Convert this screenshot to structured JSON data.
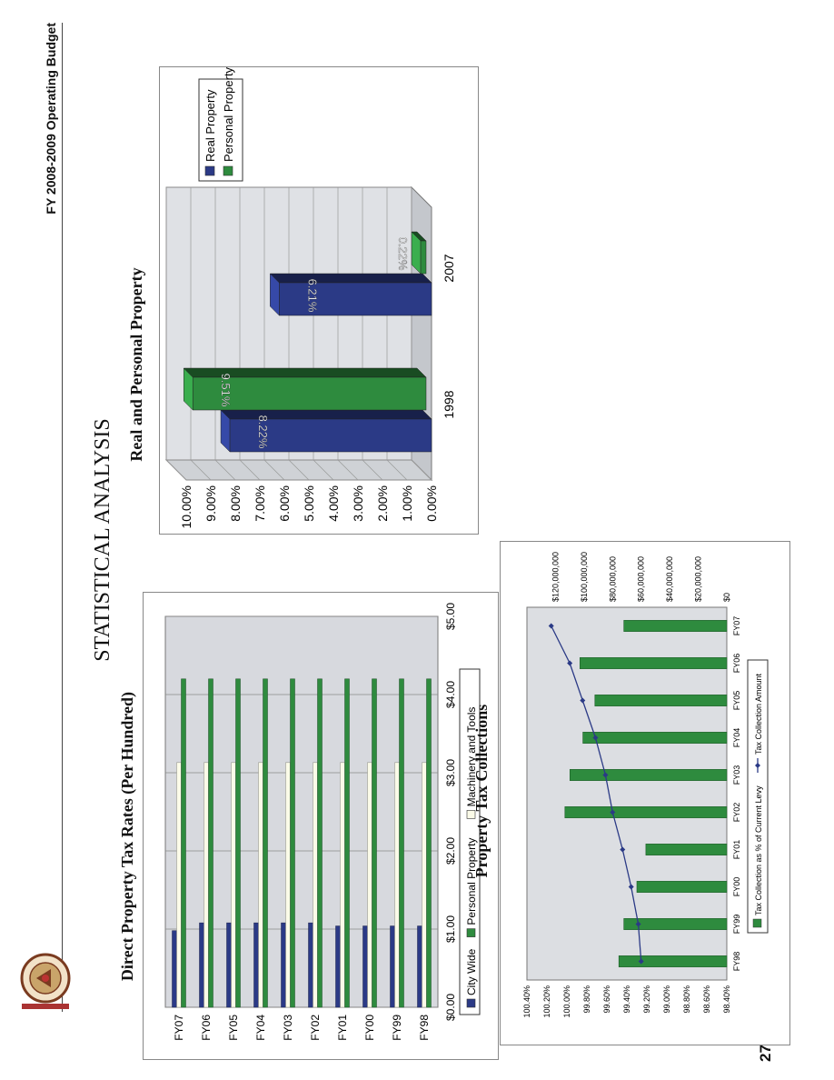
{
  "header": {
    "title": "FY 2008-2009 Operating Budget"
  },
  "page_title": "STATISTICAL ANALYSIS",
  "page_number": "273",
  "chart_data": [
    {
      "type": "bar",
      "orientation": "horizontal",
      "title": "Direct Property Tax Rates (Per Hundred)",
      "categories": [
        "FY07",
        "FY06",
        "FY05",
        "FY04",
        "FY03",
        "FY02",
        "FY01",
        "FY00",
        "FY99",
        "FY98"
      ],
      "series": [
        {
          "name": "City Wide",
          "color": "#2b3a86",
          "values": [
            0.98,
            1.08,
            1.08,
            1.08,
            1.08,
            1.08,
            1.04,
            1.04,
            1.04,
            1.04
          ]
        },
        {
          "name": "Personal Property",
          "color": "#2e8b3e",
          "values": [
            4.2,
            4.2,
            4.2,
            4.2,
            4.2,
            4.2,
            4.2,
            4.2,
            4.2,
            4.2
          ]
        },
        {
          "name": "Machinery and Tools",
          "color": "#fbfbe8",
          "values": [
            3.13,
            3.13,
            3.13,
            3.13,
            3.13,
            3.13,
            3.13,
            3.13,
            3.13,
            3.13
          ]
        }
      ],
      "xticks": [
        "$0.00",
        "$1.00",
        "$2.00",
        "$3.00",
        "$4.00",
        "$5.00"
      ],
      "xlim": [
        0,
        5
      ],
      "legend": "bottom",
      "grid": true
    },
    {
      "type": "bar",
      "title": "Real and Personal Property",
      "categories": [
        "1998",
        "2007"
      ],
      "series": [
        {
          "name": "Real Property",
          "color": "#2b3a86",
          "values": [
            8.22,
            6.21
          ],
          "labels": [
            "8.22%",
            "6.21%"
          ]
        },
        {
          "name": "Personal Property",
          "color": "#2e8b3e",
          "values": [
            9.51,
            0.22
          ],
          "labels": [
            "9.51%",
            "0.22%"
          ]
        }
      ],
      "yticks": [
        "10.00%",
        "9.00%",
        "8.00%",
        "7.00%",
        "6.00%",
        "5.00%",
        "4.00%",
        "3.00%",
        "2.00%",
        "1.00%",
        "0.00%"
      ],
      "ylim": [
        0,
        10
      ],
      "legend": "top-right",
      "grid": true
    },
    {
      "type": "bar",
      "title": "Property Tax Collections",
      "categories": [
        "FY98",
        "FY99",
        "FY00",
        "FY01",
        "FY02",
        "FY03",
        "FY04",
        "FY05",
        "FY06",
        "FY07"
      ],
      "bar_series": {
        "name": "Tax Collection as % of Current Levy",
        "color": "#2e8b3e",
        "values": [
          99.48,
          99.43,
          99.3,
          99.21,
          100.02,
          99.97,
          99.84,
          99.72,
          99.87,
          99.43
        ]
      },
      "line_series": {
        "name": "Tax Collection Amount",
        "color": "#2b3a86",
        "values": [
          60000000,
          62000000,
          67000000,
          73000000,
          80000000,
          85000000,
          92000000,
          101000000,
          110000000,
          123000000
        ]
      },
      "y_left_ticks": [
        "100.40%",
        "100.20%",
        "100.00%",
        "99.80%",
        "99.60%",
        "99.40%",
        "99.20%",
        "99.00%",
        "98.80%",
        "98.60%",
        "98.40%"
      ],
      "y_left_lim": [
        98.4,
        100.4
      ],
      "y_right_ticks": [
        "$120,000,000",
        "$100,000,000",
        "$80,000,000",
        "$60,000,000",
        "$40,000,000",
        "$20,000,000",
        "$0"
      ],
      "y_right_lim": [
        0,
        140000000
      ],
      "legend": "bottom",
      "grid": false
    }
  ]
}
